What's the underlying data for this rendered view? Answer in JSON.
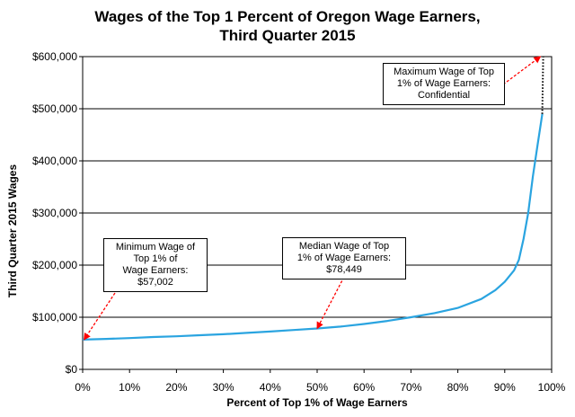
{
  "chart_data": {
    "type": "line",
    "title": [
      "Wages of the Top 1 Percent of Oregon Wage Earners,",
      "Third Quarter 2015"
    ],
    "xlabel": "Percent of Top 1% of Wage Earners",
    "ylabel": "Third Quarter 2015 Wages",
    "xlim": [
      0,
      100
    ],
    "ylim": [
      0,
      600000
    ],
    "grid": "horizontal",
    "x_ticks": [
      "0%",
      "10%",
      "20%",
      "30%",
      "40%",
      "50%",
      "60%",
      "70%",
      "80%",
      "90%",
      "100%"
    ],
    "y_ticks": [
      "$0",
      "$100,000",
      "$200,000",
      "$300,000",
      "$400,000",
      "$500,000",
      "$600,000"
    ],
    "line_color": "#2aa4e0",
    "series": [
      {
        "x": [
          0,
          5,
          10,
          15,
          20,
          25,
          30,
          35,
          40,
          45,
          50,
          55,
          60,
          65,
          70,
          75,
          80,
          85,
          88,
          90,
          92,
          93,
          94,
          95,
          96,
          97,
          98
        ],
        "y": [
          57002,
          58500,
          60000,
          62000,
          63500,
          65500,
          67500,
          70000,
          72500,
          75500,
          78449,
          82000,
          87000,
          93000,
          100000,
          108000,
          118000,
          135000,
          152000,
          168000,
          190000,
          210000,
          250000,
          300000,
          370000,
          430000,
          490000
        ]
      }
    ],
    "dotted_extension": {
      "x": [
        98,
        98.2
      ],
      "y": [
        490000,
        600000
      ]
    },
    "annotations": [
      {
        "lines": [
          "Minimum Wage of",
          "Top 1% of",
          "Wage Earners:",
          "$57,002"
        ],
        "point": [
          0.3,
          57002
        ]
      },
      {
        "lines": [
          "Median Wage of Top",
          "1% of Wage Earners:",
          "$78,449"
        ],
        "point": [
          50,
          78449
        ]
      },
      {
        "lines": [
          "Maximum Wage of Top",
          "1% of Wage Earners:",
          "Confidential"
        ],
        "point": [
          97.6,
          600000
        ]
      }
    ],
    "annotation_arrow_color": "#ff0000"
  }
}
